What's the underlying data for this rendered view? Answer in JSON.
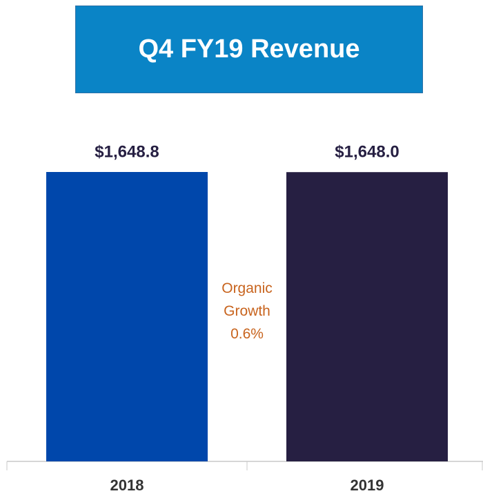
{
  "chart_data": {
    "type": "bar",
    "title": "Q4 FY19 Revenue",
    "categories": [
      "2018",
      "2019"
    ],
    "values": [
      1648.8,
      1648.0
    ],
    "value_labels": [
      "$1,648.8",
      "$1,648.0"
    ],
    "colors": [
      "#0047ab",
      "#261f42"
    ],
    "annotation": "Organic Growth 0.6%"
  }
}
